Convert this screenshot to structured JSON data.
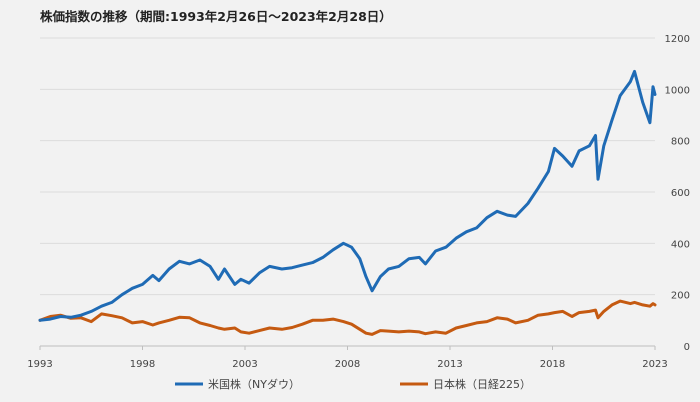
{
  "chart_data": {
    "type": "line",
    "title": "株価指数の推移（期間:1993年2月26日～2023年2月28日）",
    "xlabel": "",
    "ylabel": "",
    "x_ticks": [
      "1993",
      "1998",
      "2003",
      "2008",
      "2013",
      "2018",
      "2023"
    ],
    "y_ticks": [
      "0",
      "200",
      "400",
      "600",
      "800",
      "1000",
      "1200"
    ],
    "xlim": [
      1993.0,
      2023.0
    ],
    "ylim": [
      0,
      1200
    ],
    "grid": "horizontal",
    "legend_position": "bottom",
    "series": [
      {
        "name": "米国株（NYダウ）",
        "color": "#1f6bb5",
        "x": [
          1993.0,
          1993.5,
          1994.0,
          1994.5,
          1995.0,
          1995.5,
          1996.0,
          1996.5,
          1997.0,
          1997.5,
          1998.0,
          1998.5,
          1998.8,
          1999.3,
          1999.8,
          2000.3,
          2000.8,
          2001.3,
          2001.7,
          2002.0,
          2002.5,
          2002.8,
          2003.2,
          2003.7,
          2004.2,
          2004.8,
          2005.3,
          2005.8,
          2006.3,
          2006.8,
          2007.3,
          2007.8,
          2008.2,
          2008.6,
          2008.9,
          2009.2,
          2009.6,
          2010.0,
          2010.5,
          2011.0,
          2011.5,
          2011.8,
          2012.3,
          2012.8,
          2013.3,
          2013.8,
          2014.3,
          2014.8,
          2015.3,
          2015.8,
          2016.2,
          2016.8,
          2017.3,
          2017.8,
          2018.1,
          2018.5,
          2018.95,
          2019.3,
          2019.8,
          2020.1,
          2020.22,
          2020.5,
          2020.9,
          2021.3,
          2021.8,
          2022.0,
          2022.4,
          2022.75,
          2022.9,
          2023.0
        ],
        "values": [
          100,
          105,
          115,
          112,
          120,
          135,
          155,
          170,
          200,
          225,
          240,
          275,
          255,
          300,
          330,
          320,
          335,
          310,
          260,
          300,
          240,
          260,
          245,
          285,
          310,
          300,
          305,
          315,
          325,
          345,
          375,
          400,
          385,
          340,
          270,
          215,
          270,
          300,
          310,
          340,
          345,
          320,
          370,
          385,
          420,
          445,
          460,
          500,
          525,
          510,
          505,
          555,
          615,
          680,
          770,
          740,
          700,
          760,
          780,
          820,
          650,
          780,
          880,
          975,
          1030,
          1070,
          950,
          870,
          1010,
          980
        ]
      },
      {
        "name": "日本株（日経225）",
        "color": "#c55a11",
        "x": [
          1993.0,
          1993.5,
          1994.0,
          1994.5,
          1995.0,
          1995.5,
          1996.0,
          1996.5,
          1997.0,
          1997.5,
          1998.0,
          1998.5,
          1998.8,
          1999.3,
          1999.8,
          2000.3,
          2000.8,
          2001.3,
          2001.7,
          2002.0,
          2002.5,
          2002.8,
          2003.2,
          2003.7,
          2004.2,
          2004.8,
          2005.3,
          2005.8,
          2006.3,
          2006.8,
          2007.3,
          2007.8,
          2008.2,
          2008.6,
          2008.9,
          2009.2,
          2009.6,
          2010.0,
          2010.5,
          2011.0,
          2011.5,
          2011.8,
          2012.3,
          2012.8,
          2013.3,
          2013.8,
          2014.3,
          2014.8,
          2015.3,
          2015.8,
          2016.2,
          2016.8,
          2017.3,
          2017.8,
          2018.1,
          2018.5,
          2018.95,
          2019.3,
          2019.8,
          2020.1,
          2020.22,
          2020.5,
          2020.9,
          2021.3,
          2021.8,
          2022.0,
          2022.4,
          2022.75,
          2022.9,
          2023.0
        ],
        "values": [
          100,
          115,
          120,
          108,
          110,
          95,
          125,
          118,
          110,
          90,
          95,
          82,
          90,
          100,
          112,
          110,
          90,
          80,
          70,
          65,
          70,
          55,
          50,
          60,
          70,
          65,
          72,
          85,
          100,
          100,
          105,
          95,
          85,
          65,
          50,
          45,
          60,
          58,
          55,
          58,
          55,
          48,
          55,
          50,
          70,
          80,
          90,
          95,
          110,
          105,
          90,
          100,
          120,
          125,
          130,
          135,
          115,
          130,
          135,
          140,
          110,
          135,
          160,
          175,
          165,
          170,
          160,
          155,
          165,
          160
        ]
      }
    ]
  }
}
